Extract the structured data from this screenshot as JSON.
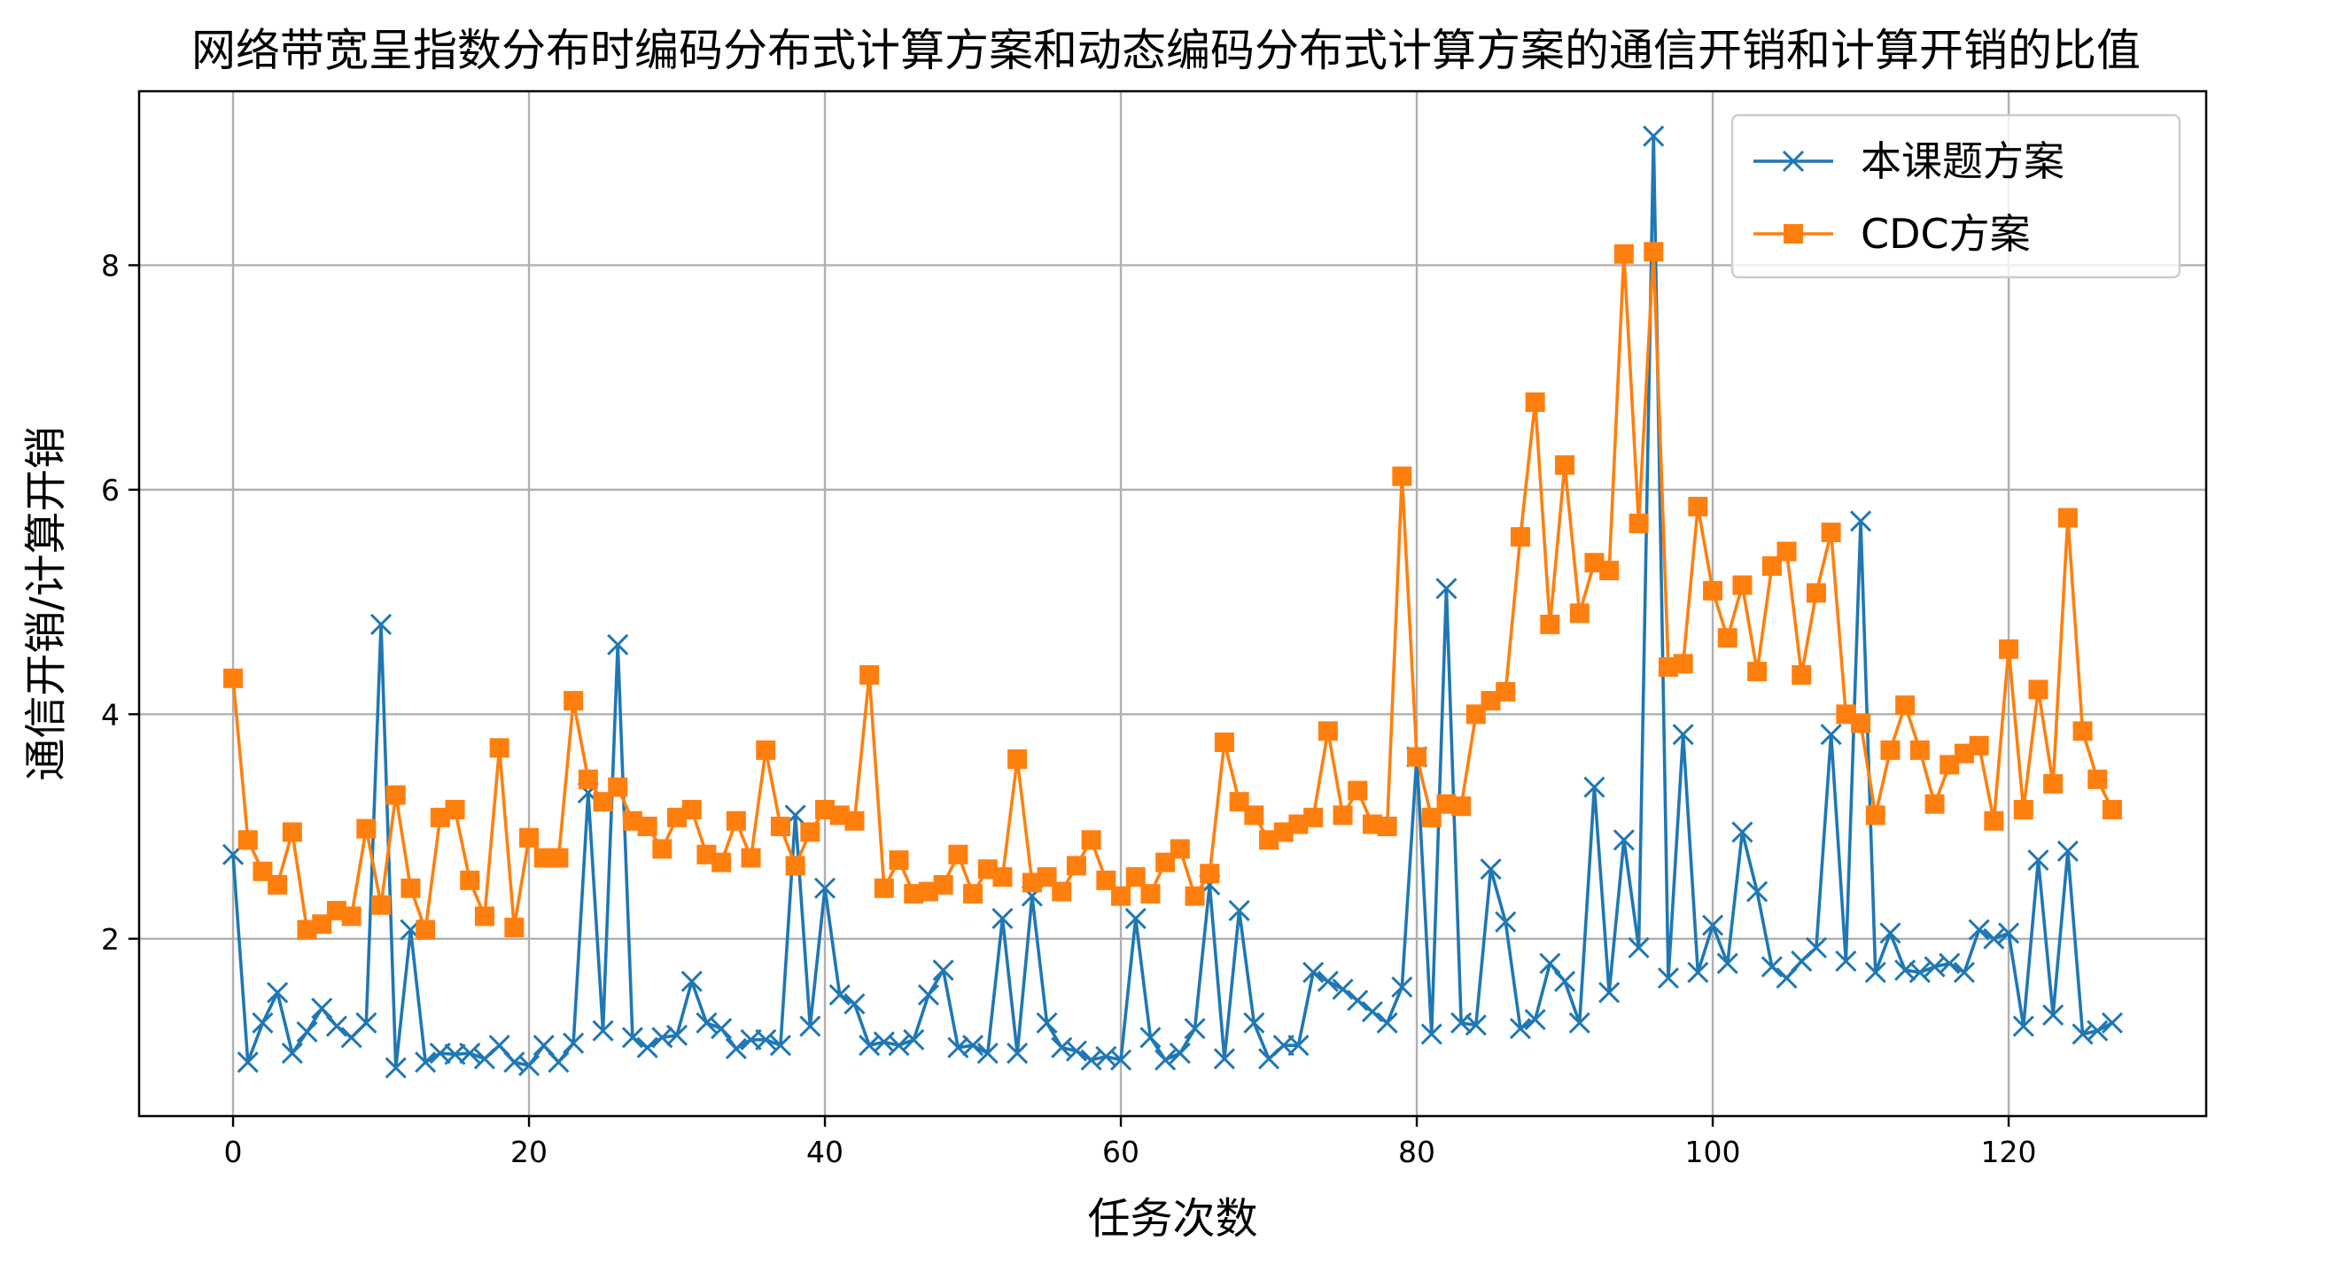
{
  "chart_data": {
    "type": "line",
    "title": "网络带宽呈指数分布时编码分布式计算方案和动态编码分布式计算方案的通信开销和计算开销的比值",
    "xlabel": "任务次数",
    "ylabel": "通信开销/计算开销",
    "xlim": [
      -6.35,
      133.35
    ],
    "ylim": [
      0.42,
      9.55
    ],
    "xticks": [
      0,
      20,
      40,
      60,
      80,
      100,
      120
    ],
    "yticks": [
      2,
      4,
      6,
      8
    ],
    "grid": true,
    "legend_position": "top-right",
    "colors": {
      "series1": "#1f77b4",
      "series2": "#ff7f0e"
    },
    "series": [
      {
        "name": "本课题方案",
        "marker": "x",
        "color": "#1f77b4",
        "values": [
          2.75,
          0.9,
          1.25,
          1.52,
          0.98,
          1.17,
          1.38,
          1.22,
          1.12,
          1.25,
          4.8,
          0.85,
          2.08,
          0.9,
          0.98,
          0.97,
          0.98,
          0.93,
          1.05,
          0.9,
          0.87,
          1.05,
          0.9,
          1.07,
          3.3,
          1.18,
          4.62,
          1.12,
          1.03,
          1.12,
          1.14,
          1.62,
          1.25,
          1.2,
          1.02,
          1.1,
          1.1,
          1.05,
          3.1,
          1.22,
          2.45,
          1.5,
          1.42,
          1.05,
          1.08,
          1.05,
          1.1,
          1.5,
          1.72,
          1.03,
          1.05,
          0.98,
          2.18,
          0.98,
          2.38,
          1.25,
          1.03,
          1.0,
          0.92,
          0.95,
          0.92,
          2.18,
          1.12,
          0.92,
          0.98,
          1.2,
          2.48,
          0.93,
          2.25,
          1.25,
          0.93,
          1.05,
          1.05,
          1.7,
          1.62,
          1.55,
          1.45,
          1.35,
          1.25,
          1.57,
          3.62,
          1.15,
          5.12,
          1.25,
          1.23,
          2.62,
          2.15,
          1.2,
          1.28,
          1.78,
          1.62,
          1.25,
          3.35,
          1.52,
          2.88,
          1.92,
          9.15,
          1.65,
          3.82,
          1.7,
          2.12,
          1.78,
          2.95,
          2.42,
          1.75,
          1.65,
          1.8,
          1.92,
          3.82,
          1.8,
          5.72,
          1.7,
          2.05,
          1.72,
          1.7,
          1.75,
          1.78,
          1.7,
          2.08,
          2.0,
          2.05,
          1.22,
          2.7,
          1.32,
          2.78,
          1.15,
          1.18,
          1.25
        ]
      },
      {
        "name": "CDC方案",
        "marker": "s",
        "color": "#ff7f0e",
        "values": [
          4.32,
          2.88,
          2.6,
          2.48,
          2.95,
          2.08,
          2.13,
          2.25,
          2.2,
          2.98,
          2.3,
          3.28,
          2.45,
          2.08,
          3.08,
          3.15,
          2.52,
          2.2,
          3.7,
          2.1,
          2.9,
          2.72,
          2.72,
          4.12,
          3.42,
          3.22,
          3.35,
          3.05,
          3.0,
          2.8,
          3.08,
          3.15,
          2.75,
          2.68,
          3.05,
          2.72,
          3.68,
          3.0,
          2.65,
          2.95,
          3.15,
          3.1,
          3.05,
          4.35,
          2.45,
          2.7,
          2.4,
          2.42,
          2.48,
          2.75,
          2.4,
          2.62,
          2.55,
          3.6,
          2.5,
          2.55,
          2.42,
          2.65,
          2.88,
          2.52,
          2.38,
          2.55,
          2.4,
          2.68,
          2.8,
          2.38,
          2.58,
          3.75,
          3.22,
          3.1,
          2.88,
          2.95,
          3.02,
          3.08,
          3.85,
          3.1,
          3.32,
          3.02,
          3.0,
          6.12,
          3.62,
          3.08,
          3.2,
          3.18,
          4.0,
          4.12,
          4.2,
          5.58,
          6.78,
          4.8,
          6.22,
          4.9,
          5.35,
          5.28,
          8.1,
          5.7,
          8.12,
          4.42,
          4.45,
          5.85,
          5.1,
          4.68,
          5.15,
          4.38,
          5.32,
          5.45,
          4.35,
          5.08,
          5.62,
          4.0,
          3.92,
          3.1,
          3.68,
          4.08,
          3.68,
          3.2,
          3.55,
          3.65,
          3.72,
          3.05,
          4.58,
          3.15,
          4.22,
          3.38,
          5.75,
          3.85,
          3.42,
          3.15
        ]
      }
    ]
  }
}
